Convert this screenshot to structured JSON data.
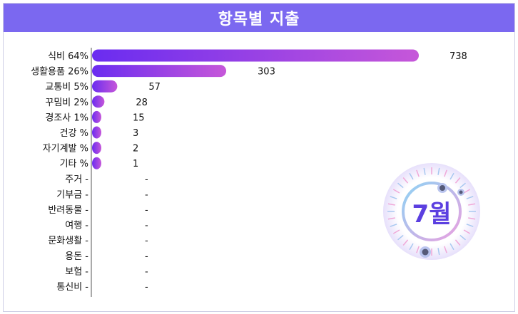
{
  "header": {
    "title": "항목별 지출"
  },
  "badge": {
    "month": "7월"
  },
  "colors": {
    "bar_start": "#6a2cf0",
    "bar_end": "#c657d9",
    "header_bg": "#7b68f0"
  },
  "chart_data": {
    "type": "bar",
    "orientation": "horizontal",
    "categories": [
      "식비",
      "생활용품",
      "교통비",
      "꾸밈비",
      "경조사",
      "건강",
      "자기계발",
      "기타",
      "주거",
      "기부금",
      "반려동물",
      "여행",
      "문화생활",
      "용돈",
      "보험",
      "통신비"
    ],
    "percent_labels": [
      "64%",
      "26%",
      "5%",
      "2%",
      "1%",
      "%",
      "%",
      "%",
      "-",
      "-",
      "-",
      "-",
      "-",
      "-",
      "-",
      "-"
    ],
    "value_labels": [
      "738",
      "303",
      "57",
      "28",
      "15",
      "3",
      "2",
      "1",
      "-",
      "-",
      "-",
      "-",
      "-",
      "-",
      "-",
      "-"
    ],
    "values": [
      738,
      303,
      57,
      28,
      15,
      3,
      2,
      1,
      0,
      0,
      0,
      0,
      0,
      0,
      0,
      0
    ],
    "title": "항목별 지출"
  }
}
